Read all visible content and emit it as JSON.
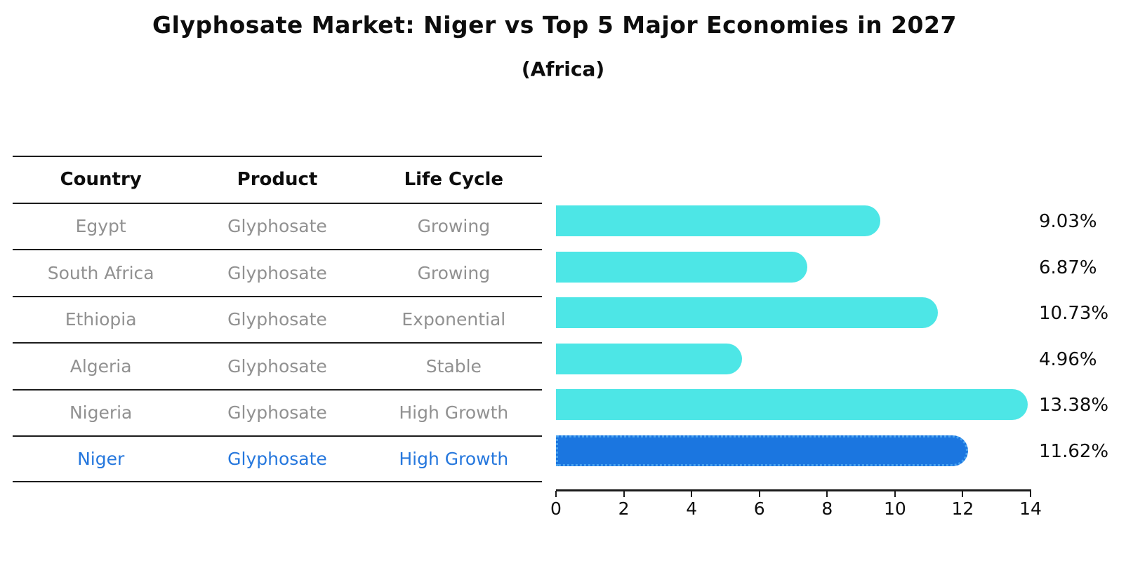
{
  "title": "Glyphosate Market: Niger vs Top 5 Major Economies in 2027",
  "subtitle": "(Africa)",
  "table": {
    "headers": [
      "Country",
      "Product",
      "Life Cycle"
    ],
    "rows": [
      {
        "country": "Egypt",
        "product": "Glyphosate",
        "life_cycle": "Growing",
        "highlight": false
      },
      {
        "country": "South Africa",
        "product": "Glyphosate",
        "life_cycle": "Growing",
        "highlight": false
      },
      {
        "country": "Ethiopia",
        "product": "Glyphosate",
        "life_cycle": "Exponential",
        "highlight": false
      },
      {
        "country": "Algeria",
        "product": "Glyphosate",
        "life_cycle": "Stable",
        "highlight": false
      },
      {
        "country": "Nigeria",
        "product": "Glyphosate",
        "life_cycle": "High Growth",
        "highlight": false
      },
      {
        "country": "Niger",
        "product": "Glyphosate",
        "life_cycle": "High Growth",
        "highlight": true
      }
    ]
  },
  "chart_data": {
    "type": "bar",
    "orientation": "horizontal",
    "title": "Glyphosate Market: Niger vs Top 5 Major Economies in 2027 (Africa)",
    "categories": [
      "Egypt",
      "South Africa",
      "Ethiopia",
      "Algeria",
      "Nigeria",
      "Niger"
    ],
    "values": [
      9.03,
      6.87,
      10.73,
      4.96,
      13.38,
      11.62
    ],
    "value_labels": [
      "9.03%",
      "6.87%",
      "10.73%",
      "4.96%",
      "13.38%",
      "11.62%"
    ],
    "xlabel": "",
    "ylabel": "",
    "xlim": [
      0,
      14
    ],
    "x_ticks": [
      0,
      2,
      4,
      6,
      8,
      10,
      12,
      14
    ],
    "grid": false,
    "legend": false,
    "highlight_index": 5,
    "bar_color": "#4de6e6",
    "highlight_bar_color": "#1b76e0",
    "highlight_border_color": "#4aa3f0"
  },
  "colors": {
    "muted_text": "#919191",
    "highlight_text": "#2577dd",
    "axis": "#1a1a1a",
    "label_text": "#0d0d0d"
  }
}
